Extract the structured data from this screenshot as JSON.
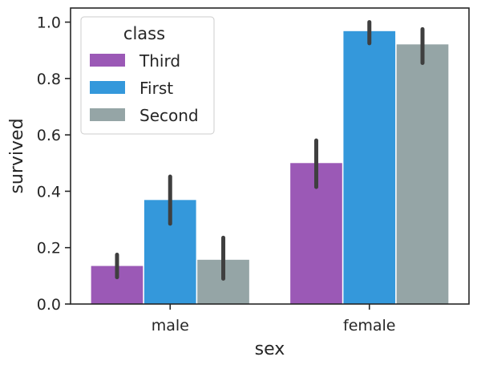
{
  "chart_data": {
    "type": "bar",
    "title": "",
    "xlabel": "sex",
    "ylabel": "survived",
    "categories": [
      "male",
      "female"
    ],
    "ylim": [
      0,
      1.05
    ],
    "yticks": [
      "0.0",
      "0.2",
      "0.4",
      "0.6",
      "0.8",
      "1.0"
    ],
    "ytick_values": [
      0,
      0.2,
      0.4,
      0.6,
      0.8,
      1.0
    ],
    "grid": false,
    "legend": {
      "title": "class",
      "placement": "upper-left"
    },
    "series": [
      {
        "name": "Third",
        "color": "#9b59b6",
        "values": [
          0.135,
          0.5
        ],
        "ci_low": [
          0.095,
          0.415
        ],
        "ci_high": [
          0.175,
          0.58
        ]
      },
      {
        "name": "First",
        "color": "#3498db",
        "values": [
          0.369,
          0.968
        ],
        "ci_low": [
          0.285,
          0.925
        ],
        "ci_high": [
          0.452,
          1.0
        ]
      },
      {
        "name": "Second",
        "color": "#95a5a6",
        "values": [
          0.157,
          0.921
        ],
        "ci_low": [
          0.09,
          0.855
        ],
        "ci_high": [
          0.235,
          0.975
        ]
      }
    ]
  }
}
